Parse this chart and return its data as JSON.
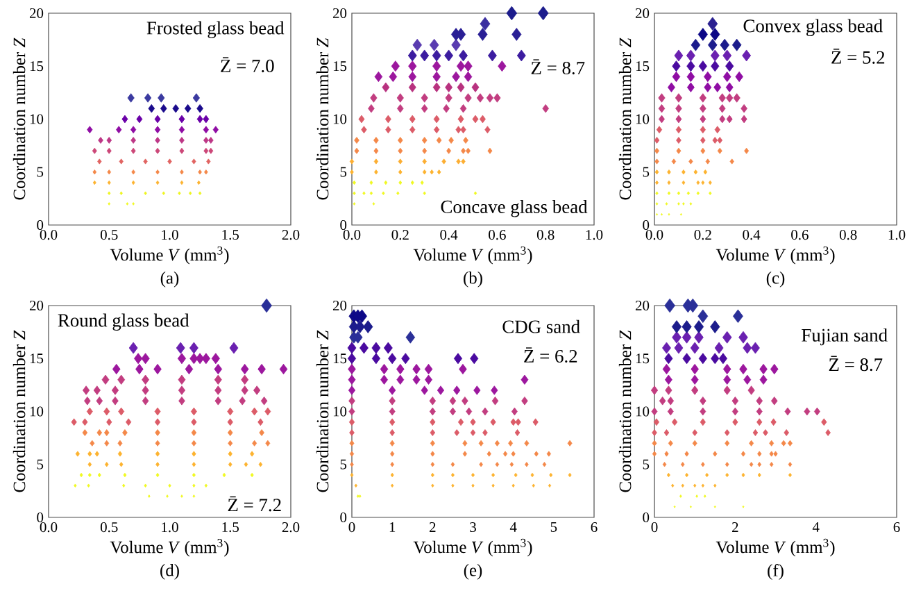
{
  "chart_data": [
    {
      "type": "scatter",
      "title": "(a)",
      "xlabel": "Volume *V* (mm$^{3}$)",
      "ylabel": "Coordination number *Z*",
      "annotations": [
        "Frosted glass bead",
        "Z̄ = 7.0"
      ],
      "marker": "diamond",
      "xlim": [
        0,
        2
      ],
      "ylim": [
        0,
        20
      ],
      "xticks": [
        {
          "value": 0,
          "label": "0.0"
        },
        {
          "value": 0.5,
          "label": "0.5"
        },
        {
          "value": 1,
          "label": "1.0"
        },
        {
          "value": 1.5,
          "label": "1.5"
        },
        {
          "value": 2,
          "label": "2.0"
        }
      ],
      "yticks": [
        0,
        5,
        10,
        15,
        20
      ],
      "series": [
        {
          "color": "#f0f921",
          "x": [
            0.5,
            0.65,
            0.7
          ],
          "values": [
            2,
            2,
            2
          ]
        },
        {
          "color": "#eef51f",
          "x": [
            0.5,
            0.6,
            0.8,
            0.95,
            1.08,
            1.17,
            1.25
          ],
          "values": [
            3,
            3,
            3,
            3,
            3,
            3,
            3
          ]
        },
        {
          "color": "#fdb32f",
          "x": [
            0.38,
            0.5,
            0.7,
            0.9,
            1.1,
            1.24
          ],
          "values": [
            4,
            4,
            4,
            4,
            4,
            4
          ]
        },
        {
          "color": "#f48849",
          "x": [
            0.38,
            0.5,
            0.7,
            0.9,
            1.1,
            1.25,
            1.3
          ],
          "values": [
            5,
            5,
            5,
            5,
            5,
            5,
            5
          ]
        },
        {
          "color": "#e16462",
          "x": [
            0.42,
            0.6,
            0.8,
            1.0,
            1.2,
            1.32
          ],
          "values": [
            6,
            6,
            6,
            6,
            6,
            6
          ]
        },
        {
          "color": "#cc4778",
          "x": [
            0.38,
            0.5,
            0.7,
            0.9,
            1.1,
            1.3,
            1.34
          ],
          "values": [
            7,
            7,
            7,
            7,
            7,
            7,
            7
          ]
        },
        {
          "color": "#bd3786",
          "x": [
            0.43,
            0.5,
            0.7,
            0.9,
            1.1,
            1.3,
            1.34
          ],
          "values": [
            8,
            8,
            8,
            8,
            8,
            8,
            8
          ]
        },
        {
          "color": "#8f0da4",
          "x": [
            0.34,
            0.58,
            0.7,
            0.9,
            1.1,
            1.3,
            1.38
          ],
          "values": [
            9,
            9,
            9,
            9,
            9,
            9,
            9
          ]
        },
        {
          "color": "#6a00a8",
          "x": [
            0.63,
            0.75,
            0.9,
            1.1,
            1.25,
            1.3
          ],
          "values": [
            10,
            10,
            10,
            10,
            10,
            10
          ]
        },
        {
          "color": "#1a0a8c",
          "x": [
            0.85,
            0.95,
            1.05,
            1.15,
            1.25
          ],
          "values": [
            11,
            11,
            11,
            11,
            11
          ]
        },
        {
          "color": "#3b3aa0",
          "x": [
            0.68,
            0.82,
            0.93,
            1.22
          ],
          "values": [
            12,
            12,
            12,
            12
          ]
        }
      ]
    },
    {
      "type": "scatter",
      "title": "(b)",
      "xlabel": "Volume *V* (mm$^{3}$)",
      "ylabel": "Coordination number *Z*",
      "annotations": [
        "Concave glass bead",
        "Z̄ = 8.7"
      ],
      "marker": "diamond",
      "xlim": [
        0,
        1
      ],
      "ylim": [
        0,
        20
      ],
      "xticks": [
        {
          "value": 0,
          "label": "0.0"
        },
        {
          "value": 0.2,
          "label": "0.2"
        },
        {
          "value": 0.4,
          "label": "0.4"
        },
        {
          "value": 0.6,
          "label": "0.6"
        },
        {
          "value": 0.8,
          "label": "0.8"
        },
        {
          "value": 1,
          "label": "1.0"
        }
      ],
      "yticks": [
        0,
        5,
        10,
        15,
        20
      ],
      "series": [
        {
          "color": "#f0f921",
          "x": [
            0.01,
            0.09
          ],
          "values": [
            2,
            2
          ]
        },
        {
          "color": "#f0f921",
          "x": [
            0.01,
            0.05,
            0.08,
            0.13,
            0.19,
            0.3,
            0.51
          ],
          "values": [
            3,
            3,
            3,
            3,
            3,
            3,
            3
          ]
        },
        {
          "color": "#f0f921",
          "x": [
            0.01,
            0.08,
            0.14,
            0.2,
            0.25,
            0.29
          ],
          "values": [
            4,
            4,
            4,
            4,
            4,
            4
          ]
        },
        {
          "color": "#fdb32f",
          "x": [
            0.0,
            0.1,
            0.2,
            0.3,
            0.33,
            0.36
          ],
          "values": [
            5,
            5,
            5,
            5,
            5,
            5
          ]
        },
        {
          "color": "#fcae32",
          "x": [
            0.0,
            0.1,
            0.2,
            0.3,
            0.38,
            0.44,
            0.46
          ],
          "values": [
            6,
            6,
            6,
            6,
            6,
            6,
            6
          ]
        },
        {
          "color": "#f48849",
          "x": [
            0.02,
            0.1,
            0.2,
            0.3,
            0.4,
            0.46,
            0.48,
            0.57
          ],
          "values": [
            7,
            7,
            7,
            7,
            7,
            7,
            7,
            7
          ]
        },
        {
          "color": "#f48849",
          "x": [
            0.02,
            0.1,
            0.2,
            0.3,
            0.36,
            0.41,
            0.47
          ],
          "values": [
            8,
            8,
            8,
            8,
            8,
            8,
            8
          ]
        },
        {
          "color": "#dc5c68",
          "x": [
            0.05,
            0.15,
            0.25,
            0.35,
            0.44,
            0.46,
            0.56
          ],
          "values": [
            9,
            9,
            9,
            9,
            9,
            9,
            9
          ]
        },
        {
          "color": "#dc5c68",
          "x": [
            0.04,
            0.15,
            0.25,
            0.35,
            0.45,
            0.51,
            0.54
          ],
          "values": [
            10,
            10,
            10,
            10,
            10,
            10,
            10
          ]
        },
        {
          "color": "#c23d80",
          "x": [
            0.08,
            0.2,
            0.3,
            0.39,
            0.46,
            0.8
          ],
          "values": [
            11,
            11,
            11,
            11,
            11,
            11
          ]
        },
        {
          "color": "#c23d80",
          "x": [
            0.09,
            0.2,
            0.3,
            0.4,
            0.48,
            0.53,
            0.57,
            0.6
          ],
          "values": [
            12,
            12,
            12,
            12,
            12,
            12,
            12,
            12
          ]
        },
        {
          "color": "#b8327f",
          "x": [
            0.14,
            0.25,
            0.35,
            0.4,
            0.45,
            0.51
          ],
          "values": [
            13,
            13,
            13,
            13,
            13,
            13
          ]
        },
        {
          "color": "#9c179e",
          "x": [
            0.11,
            0.17,
            0.25,
            0.35,
            0.43,
            0.48
          ],
          "values": [
            14,
            14,
            14,
            14,
            14,
            14
          ]
        },
        {
          "color": "#9c179e",
          "x": [
            0.18,
            0.25,
            0.35,
            0.45,
            0.48,
            0.62
          ],
          "values": [
            15,
            15,
            15,
            15,
            15,
            15
          ]
        },
        {
          "color": "#3c1ca0",
          "x": [
            0.25,
            0.3,
            0.35,
            0.4,
            0.46,
            0.58,
            0.7
          ],
          "values": [
            16,
            16,
            16,
            16,
            16,
            16,
            16
          ]
        },
        {
          "color": "#5a3cb0",
          "x": [
            0.27,
            0.34,
            0.43
          ],
          "values": [
            17,
            17,
            17
          ]
        },
        {
          "color": "#2a1f95",
          "x": [
            0.43,
            0.45,
            0.54,
            0.68
          ],
          "values": [
            18,
            18,
            18,
            18
          ]
        },
        {
          "color": "#3b2fa0",
          "x": [
            0.55
          ],
          "values": [
            19
          ]
        },
        {
          "color": "#1c1c8c",
          "x": [
            0.66,
            0.79
          ],
          "values": [
            20,
            20
          ]
        }
      ]
    },
    {
      "type": "scatter",
      "title": "(c)",
      "xlabel": "Volume *V* (mm$^{3}$)",
      "ylabel": "Coordination number *Z*",
      "annotations": [
        "Convex glass bead",
        "Z̄ = 5.2"
      ],
      "marker": "diamond",
      "xlim": [
        0,
        1
      ],
      "ylim": [
        0,
        20
      ],
      "xticks": [
        {
          "value": 0,
          "label": "0.0"
        },
        {
          "value": 0.2,
          "label": "0.2"
        },
        {
          "value": 0.4,
          "label": "0.4"
        },
        {
          "value": 0.6,
          "label": "0.6"
        },
        {
          "value": 0.8,
          "label": "0.8"
        },
        {
          "value": 1,
          "label": "1.0"
        }
      ],
      "yticks": [
        0,
        5,
        10,
        15,
        20
      ],
      "series": [
        {
          "color": "#f0f921",
          "x": [
            0.01,
            0.03,
            0.06,
            0.11
          ],
          "values": [
            1,
            1,
            1,
            1
          ]
        },
        {
          "color": "#f0f921",
          "x": [
            0.01,
            0.05,
            0.1,
            0.12,
            0.15
          ],
          "values": [
            2,
            2,
            2,
            2,
            2
          ]
        },
        {
          "color": "#f0f921",
          "x": [
            0.01,
            0.06,
            0.1,
            0.14,
            0.18,
            0.23
          ],
          "values": [
            3,
            3,
            3,
            3,
            3,
            3
          ]
        },
        {
          "color": "#fdb32f",
          "x": [
            0.01,
            0.06,
            0.12,
            0.18,
            0.2,
            0.23
          ],
          "values": [
            4,
            4,
            4,
            4,
            4,
            4
          ]
        },
        {
          "color": "#fdb32f",
          "x": [
            0.01,
            0.06,
            0.12,
            0.17,
            0.21
          ],
          "values": [
            5,
            5,
            5,
            5,
            5
          ]
        },
        {
          "color": "#f48849",
          "x": [
            0.01,
            0.08,
            0.15,
            0.22,
            0.32
          ],
          "values": [
            6,
            6,
            6,
            6,
            6
          ]
        },
        {
          "color": "#f48849",
          "x": [
            0.01,
            0.1,
            0.2,
            0.27,
            0.38
          ],
          "values": [
            7,
            7,
            7,
            7,
            7
          ]
        },
        {
          "color": "#dc5c68",
          "x": [
            0.01,
            0.1,
            0.2,
            0.25,
            0.27
          ],
          "values": [
            8,
            8,
            8,
            8,
            8
          ]
        },
        {
          "color": "#dc5c68",
          "x": [
            0.02,
            0.1,
            0.2,
            0.26
          ],
          "values": [
            9,
            9,
            9,
            9
          ]
        },
        {
          "color": "#c23d80",
          "x": [
            0.03,
            0.1,
            0.2,
            0.28,
            0.31,
            0.37
          ],
          "values": [
            10,
            10,
            10,
            10,
            10,
            10
          ]
        },
        {
          "color": "#c23d80",
          "x": [
            0.03,
            0.1,
            0.2,
            0.28,
            0.37
          ],
          "values": [
            11,
            11,
            11,
            11,
            11
          ]
        },
        {
          "color": "#c23d80",
          "x": [
            0.03,
            0.1,
            0.2,
            0.28,
            0.31,
            0.34
          ],
          "values": [
            12,
            12,
            12,
            12,
            12,
            12
          ]
        },
        {
          "color": "#8f0da4",
          "x": [
            0.07,
            0.15,
            0.22,
            0.26,
            0.31
          ],
          "values": [
            13,
            13,
            13,
            13,
            13
          ]
        },
        {
          "color": "#8f0da4",
          "x": [
            0.09,
            0.15,
            0.22,
            0.3,
            0.35
          ],
          "values": [
            14,
            14,
            14,
            14,
            14
          ]
        },
        {
          "color": "#4a0aa0",
          "x": [
            0.09,
            0.15,
            0.2,
            0.25,
            0.31
          ],
          "values": [
            15,
            15,
            15,
            15,
            15
          ]
        },
        {
          "color": "#6a20b0",
          "x": [
            0.1,
            0.15,
            0.25,
            0.3,
            0.38
          ],
          "values": [
            16,
            16,
            16,
            16,
            16
          ]
        },
        {
          "color": "#1c1c8c",
          "x": [
            0.17,
            0.24,
            0.29,
            0.34
          ],
          "values": [
            17,
            17,
            17,
            17
          ]
        },
        {
          "color": "#0d0887",
          "x": [
            0.2,
            0.25
          ],
          "values": [
            18,
            18
          ]
        },
        {
          "color": "#2a2090",
          "x": [
            0.24
          ],
          "values": [
            19
          ]
        }
      ]
    },
    {
      "type": "scatter",
      "title": "(d)",
      "xlabel": "Volume *V* (mm$^{3}$)",
      "ylabel": "Coordination number *Z*",
      "annotations": [
        "Round glass bead",
        "Z̄ = 7.2"
      ],
      "marker": "diamond",
      "xlim": [
        0,
        2
      ],
      "ylim": [
        0,
        20
      ],
      "xticks": [
        {
          "value": 0,
          "label": "0.0"
        },
        {
          "value": 0.5,
          "label": "0.5"
        },
        {
          "value": 1,
          "label": "1.0"
        },
        {
          "value": 1.5,
          "label": "1.5"
        },
        {
          "value": 2,
          "label": "2.0"
        }
      ],
      "yticks": [
        0,
        5,
        10,
        15,
        20
      ],
      "series": [
        {
          "color": "#f0f921",
          "x": [
            0.83,
            0.98,
            1.1,
            1.2
          ],
          "values": [
            2,
            2,
            2,
            2
          ]
        },
        {
          "color": "#f0f921",
          "x": [
            0.22,
            0.33,
            0.62,
            0.8,
            1.0,
            1.2,
            1.3
          ],
          "values": [
            3,
            3,
            3,
            3,
            3,
            3,
            3
          ]
        },
        {
          "color": "#f0f921",
          "x": [
            0.27,
            0.34,
            0.42,
            0.63,
            0.9,
            1.2,
            1.45,
            1.68
          ],
          "values": [
            4,
            4,
            4,
            4,
            4,
            4,
            4,
            4
          ]
        },
        {
          "color": "#fdb32f",
          "x": [
            0.34,
            0.48,
            0.6,
            0.9,
            1.2,
            1.5,
            1.63,
            1.75
          ],
          "values": [
            5,
            5,
            5,
            5,
            5,
            5,
            5,
            5
          ]
        },
        {
          "color": "#fdb32f",
          "x": [
            0.24,
            0.34,
            0.4,
            0.59,
            0.9,
            1.2,
            1.5,
            1.68
          ],
          "values": [
            6,
            6,
            6,
            6,
            6,
            6,
            6,
            6
          ]
        },
        {
          "color": "#f48849",
          "x": [
            0.36,
            0.48,
            0.59,
            0.9,
            1.2,
            1.5,
            1.7,
            1.81
          ],
          "values": [
            7,
            7,
            7,
            7,
            7,
            7,
            7,
            7
          ]
        },
        {
          "color": "#f48849",
          "x": [
            0.3,
            0.42,
            0.48,
            0.63,
            0.9,
            1.2,
            1.5,
            1.76
          ],
          "values": [
            8,
            8,
            8,
            8,
            8,
            8,
            8,
            8
          ]
        },
        {
          "color": "#dc5c68",
          "x": [
            0.21,
            0.3,
            0.5,
            0.66,
            0.9,
            1.2,
            1.5,
            1.75
          ],
          "values": [
            9,
            9,
            9,
            9,
            9,
            9,
            9,
            9
          ]
        },
        {
          "color": "#dc5c68",
          "x": [
            0.34,
            0.48,
            0.6,
            0.9,
            1.2,
            1.5,
            1.7,
            1.81
          ],
          "values": [
            10,
            10,
            10,
            10,
            10,
            10,
            10,
            10
          ]
        },
        {
          "color": "#c23d80",
          "x": [
            0.32,
            0.42,
            0.55,
            0.8,
            1.1,
            1.4,
            1.6,
            1.78
          ],
          "values": [
            11,
            11,
            11,
            11,
            11,
            11,
            11,
            11
          ]
        },
        {
          "color": "#c23d80",
          "x": [
            0.31,
            0.4,
            0.55,
            0.8,
            1.1,
            1.4,
            1.62,
            1.72
          ],
          "values": [
            12,
            12,
            12,
            12,
            12,
            12,
            12,
            12
          ]
        },
        {
          "color": "#c23d80",
          "x": [
            0.47,
            0.6,
            0.8,
            1.1,
            1.4,
            1.62
          ],
          "values": [
            13,
            13,
            13,
            13,
            13,
            13
          ]
        },
        {
          "color": "#9c179e",
          "x": [
            0.56,
            0.75,
            0.9,
            1.16,
            1.4,
            1.62,
            1.76,
            1.94
          ],
          "values": [
            14,
            14,
            14,
            14,
            14,
            14,
            14,
            14
          ]
        },
        {
          "color": "#9c179e",
          "x": [
            0.74,
            0.8,
            1.1,
            1.2,
            1.25,
            1.3,
            1.38
          ],
          "values": [
            15,
            15,
            15,
            15,
            15,
            15,
            15
          ]
        },
        {
          "color": "#6a20b0",
          "x": [
            0.7,
            1.09,
            1.2,
            1.53
          ],
          "values": [
            16,
            16,
            16,
            16
          ]
        },
        {
          "color": "#2a2f98",
          "x": [
            1.8
          ],
          "values": [
            20
          ]
        }
      ]
    },
    {
      "type": "scatter",
      "title": "(e)",
      "xlabel": "Volume *V* (mm$^{3}$)",
      "ylabel": "Coordination number *Z*",
      "annotations": [
        "CDG sand",
        "Z̄ = 6.2"
      ],
      "marker": "diamond",
      "xlim": [
        0,
        6
      ],
      "ylim": [
        0,
        20
      ],
      "xticks": [
        0,
        1,
        2,
        3,
        4,
        5,
        6
      ],
      "yticks": [
        0,
        5,
        10,
        15,
        20
      ],
      "series": [
        {
          "color": "#f0f921",
          "x": [
            0.15,
            0.2
          ],
          "values": [
            2,
            2
          ]
        },
        {
          "color": "#fdb32f",
          "x": [
            0.1,
            1,
            2,
            2.5,
            3,
            3.5,
            4,
            4.5,
            4.9
          ],
          "values": [
            3,
            3,
            3,
            3,
            3,
            3,
            3,
            3,
            3
          ]
        },
        {
          "color": "#fdb32f",
          "x": [
            0.0,
            1,
            2,
            2.5,
            3,
            3.5,
            4.06,
            4.47,
            4.93,
            5.4
          ],
          "values": [
            4,
            4,
            4,
            4,
            4,
            4,
            4,
            4,
            4,
            4
          ]
        },
        {
          "color": "#f48849",
          "x": [
            0.0,
            1,
            2,
            2.5,
            3.2,
            3.6,
            3.96,
            4.33,
            4.77
          ],
          "values": [
            5,
            5,
            5,
            5,
            5,
            5,
            5,
            5,
            5
          ]
        },
        {
          "color": "#f48849",
          "x": [
            0.0,
            1,
            2,
            2.8,
            3.4,
            3.8,
            4.0,
            4.57,
            4.88
          ],
          "values": [
            6,
            6,
            6,
            6,
            6,
            6,
            6,
            6,
            6
          ]
        },
        {
          "color": "#f48849",
          "x": [
            0.0,
            1,
            2,
            2.8,
            3.2,
            3.6,
            3.93,
            4.33,
            5.4
          ],
          "values": [
            7,
            7,
            7,
            7,
            7,
            7,
            7,
            7,
            7
          ]
        },
        {
          "color": "#dc5c68",
          "x": [
            0.0,
            1,
            2,
            2.6,
            3.0,
            3.3,
            4.1
          ],
          "values": [
            8,
            8,
            8,
            8,
            8,
            8,
            8
          ]
        },
        {
          "color": "#dc5c68",
          "x": [
            0.0,
            1,
            2,
            2.7,
            3.0,
            3.5,
            4.0,
            4.12,
            4.55
          ],
          "values": [
            9,
            9,
            9,
            9,
            9,
            9,
            9,
            9,
            9
          ]
        },
        {
          "color": "#c23d80",
          "x": [
            0.0,
            1,
            2,
            2.5,
            2.9,
            3.3,
            4.03
          ],
          "values": [
            10,
            10,
            10,
            10,
            10,
            10,
            10
          ]
        },
        {
          "color": "#c23d80",
          "x": [
            0.0,
            1,
            2,
            2.5,
            2.8,
            3.55,
            4.28
          ],
          "values": [
            11,
            11,
            11,
            11,
            11,
            11,
            11
          ]
        },
        {
          "color": "#9c179e",
          "x": [
            0.0,
            1,
            1.8,
            2.2,
            2.6,
            3.1,
            3.53
          ],
          "values": [
            12,
            12,
            12,
            12,
            12,
            12,
            12
          ]
        },
        {
          "color": "#9c179e",
          "x": [
            0.0,
            0.8,
            1.2,
            1.6,
            1.9,
            4.28
          ],
          "values": [
            13,
            13,
            13,
            13,
            13,
            13
          ]
        },
        {
          "color": "#9c179e",
          "x": [
            0.0,
            0.8,
            1.2,
            1.6,
            1.9,
            2.75
          ],
          "values": [
            14,
            14,
            14,
            14,
            14,
            14
          ]
        },
        {
          "color": "#4a0aa0",
          "x": [
            0.0,
            0.6,
            1.0,
            1.33,
            2.63,
            3.03
          ],
          "values": [
            15,
            15,
            15,
            15,
            15,
            15
          ]
        },
        {
          "color": "#4a0aa0",
          "x": [
            0.0,
            0.3,
            0.6,
            0.9
          ],
          "values": [
            16,
            16,
            16,
            16
          ]
        },
        {
          "color": "#2a2f98",
          "x": [
            0.05,
            0.15,
            1.45
          ],
          "values": [
            17,
            17,
            17
          ]
        },
        {
          "color": "#1c1c8c",
          "x": [
            0.05,
            0.2,
            0.4
          ],
          "values": [
            18,
            18,
            18
          ]
        },
        {
          "color": "#0d0887",
          "x": [
            0.05,
            0.15,
            0.25
          ],
          "values": [
            19,
            19,
            19
          ]
        }
      ]
    },
    {
      "type": "scatter",
      "title": "(f)",
      "xlabel": "Volume *V* (mm$^{3}$)",
      "ylabel": "Coordination number *Z*",
      "annotations": [
        "Fujian sand",
        "Z̄ = 8.7"
      ],
      "marker": "diamond",
      "xlim": [
        0,
        6
      ],
      "ylim": [
        0,
        20
      ],
      "xticks": [
        0,
        2,
        4,
        6
      ],
      "yticks": [
        0,
        5,
        10,
        15,
        20
      ],
      "series": [
        {
          "color": "#f0f921",
          "x": [
            0.5,
            0.9,
            1.5,
            2.2
          ],
          "values": [
            1,
            1,
            1,
            1
          ]
        },
        {
          "color": "#f0f921",
          "x": [
            0.65,
            1.05,
            1.25
          ],
          "values": [
            2,
            2,
            2
          ]
        },
        {
          "color": "#fdb32f",
          "x": [
            0.45,
            0.7,
            1.0,
            1.2,
            1.5
          ],
          "values": [
            3,
            3,
            3,
            3,
            3
          ]
        },
        {
          "color": "#fdb32f",
          "x": [
            0.35,
            0.8,
            1.3,
            1.8,
            2.2,
            2.6,
            3.36
          ],
          "values": [
            4,
            4,
            4,
            4,
            4,
            4,
            4
          ]
        },
        {
          "color": "#f48849",
          "x": [
            0.25,
            0.7,
            1.2,
            1.8,
            2.4,
            2.6,
            2.9,
            3.36
          ],
          "values": [
            5,
            5,
            5,
            5,
            5,
            5,
            5,
            5
          ]
        },
        {
          "color": "#f48849",
          "x": [
            0.0,
            0.3,
            0.8,
            1.5,
            2.2,
            2.6,
            2.9,
            3.0
          ],
          "values": [
            6,
            6,
            6,
            6,
            6,
            6,
            6,
            6
          ]
        },
        {
          "color": "#f48849",
          "x": [
            0.0,
            0.4,
            1.0,
            1.8,
            2.4,
            2.9,
            3.2,
            3.36
          ],
          "values": [
            7,
            7,
            7,
            7,
            7,
            7,
            7,
            7
          ]
        },
        {
          "color": "#dc5c68",
          "x": [
            0.0,
            0.3,
            1.0,
            1.8,
            2.5,
            2.75,
            3.27,
            4.3
          ],
          "values": [
            8,
            8,
            8,
            8,
            8,
            8,
            8,
            8
          ]
        },
        {
          "color": "#dc5c68",
          "x": [
            0.05,
            0.5,
            1.2,
            2.0,
            2.6,
            2.95,
            4.2
          ],
          "values": [
            9,
            9,
            9,
            9,
            9,
            9,
            9
          ]
        },
        {
          "color": "#c23d80",
          "x": [
            0.0,
            0.4,
            1.2,
            2.0,
            2.6,
            3.3,
            3.78,
            4.03
          ],
          "values": [
            10,
            10,
            10,
            10,
            10,
            10,
            10,
            10
          ]
        },
        {
          "color": "#c23d80",
          "x": [
            0.2,
            0.4,
            1.2,
            2.0,
            2.6,
            2.97
          ],
          "values": [
            11,
            11,
            11,
            11,
            11,
            11
          ]
        },
        {
          "color": "#c23d80",
          "x": [
            0.0,
            0.35,
            1.0,
            1.8,
            2.4
          ],
          "values": [
            12,
            12,
            12,
            12,
            12
          ]
        },
        {
          "color": "#9c179e",
          "x": [
            0.35,
            1.0,
            1.8,
            2.3,
            2.7
          ],
          "values": [
            13,
            13,
            13,
            13,
            13
          ]
        },
        {
          "color": "#9c179e",
          "x": [
            0.3,
            1.0,
            1.8,
            2.2,
            2.7,
            2.97
          ],
          "values": [
            14,
            14,
            14,
            14,
            14,
            14
          ]
        },
        {
          "color": "#4a0aa0",
          "x": [
            0.35,
            0.8,
            1.2,
            1.5,
            1.7
          ],
          "values": [
            15,
            15,
            15,
            15,
            15
          ]
        },
        {
          "color": "#6a20b0",
          "x": [
            0.3,
            0.6,
            1.0,
            1.6,
            2.3,
            2.5
          ],
          "values": [
            16,
            16,
            16,
            16,
            16,
            16
          ]
        },
        {
          "color": "#6a20b0",
          "x": [
            0.55,
            0.8,
            1.1,
            1.8,
            2.2
          ],
          "values": [
            17,
            17,
            17,
            17,
            17
          ]
        },
        {
          "color": "#1c1c8c",
          "x": [
            0.55,
            0.8,
            1.1,
            1.5
          ],
          "values": [
            18,
            18,
            18,
            18
          ]
        },
        {
          "color": "#2a2f98",
          "x": [
            1.2,
            2.07
          ],
          "values": [
            19,
            19
          ]
        },
        {
          "color": "#2a2f98",
          "x": [
            0.38,
            0.83,
            0.95
          ],
          "values": [
            20,
            20,
            20
          ]
        }
      ]
    }
  ]
}
